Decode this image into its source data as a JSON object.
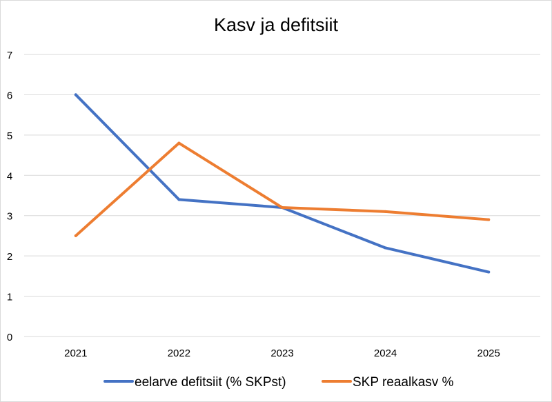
{
  "chart_data": {
    "type": "line",
    "title": "Kasv ja defitsiit",
    "xlabel": "",
    "ylabel": "",
    "categories": [
      "2021",
      "2022",
      "2023",
      "2024",
      "2025"
    ],
    "ylim": [
      0,
      7
    ],
    "yticks": [
      "0",
      "1",
      "2",
      "3",
      "4",
      "5",
      "6",
      "7"
    ],
    "grid": true,
    "legend_position": "bottom",
    "series": [
      {
        "name": "eelarve defitsiit (% SKPst)",
        "color": "#4472C4",
        "values": [
          6.0,
          3.4,
          3.2,
          2.2,
          1.6
        ]
      },
      {
        "name": "SKP reaalkasv %",
        "color": "#ED7D31",
        "values": [
          2.5,
          4.8,
          3.2,
          3.1,
          2.9
        ]
      }
    ]
  }
}
